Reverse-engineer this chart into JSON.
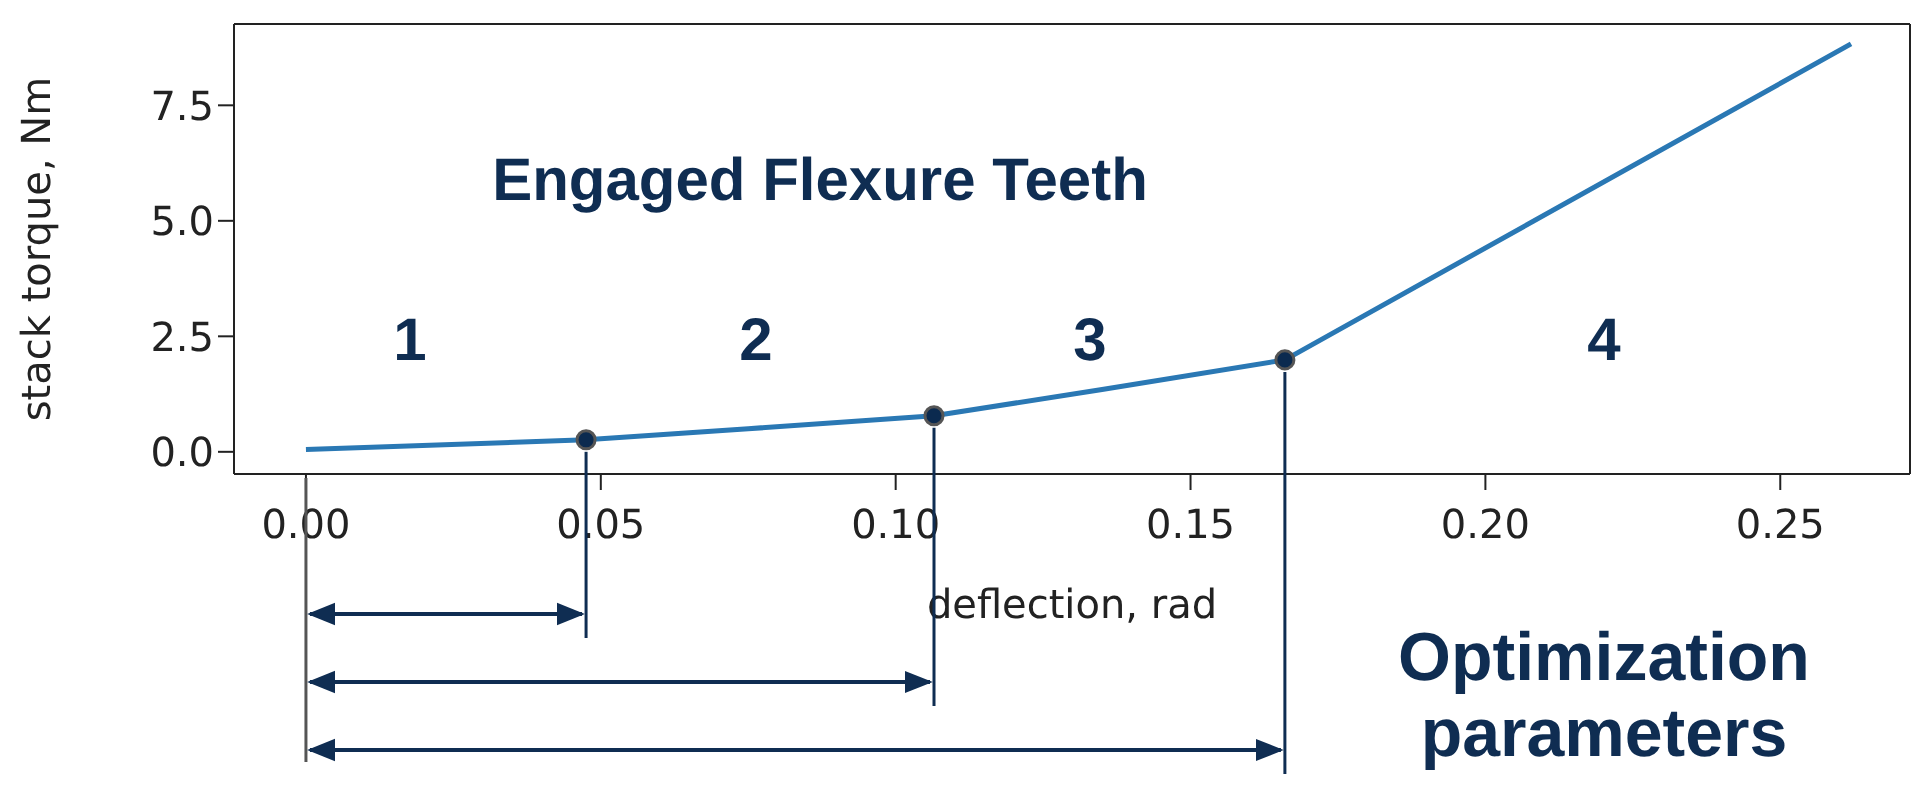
{
  "chart_data": {
    "type": "line",
    "xlabel": "deflection, rad",
    "ylabel": "stack torque, Nm",
    "xlim": [
      -0.0122,
      0.272
    ],
    "ylim": [
      -0.48,
      9.26
    ],
    "xticks": [
      {
        "value": 0,
        "label": "0.00"
      },
      0.05,
      {
        "value": 0.1,
        "label": "0.10"
      },
      0.15,
      {
        "value": 0.2,
        "label": "0.20"
      },
      0.25
    ],
    "yticks": [
      {
        "value": 0,
        "label": "0.0"
      },
      2.5,
      {
        "value": 5,
        "label": "5.0"
      },
      7.5
    ],
    "series": [
      {
        "type": "line",
        "color": "#2a78b4",
        "x": [
          0,
          0.0475,
          0.075,
          0.1065,
          0.135,
          0.166,
          0.262
        ],
        "values": [
          0.05,
          0.26,
          0.5,
          0.78,
          1.35,
          1.99,
          8.83
        ]
      },
      {
        "type": "scatter",
        "color": "#0b2a4f",
        "marker": "circle",
        "x": [
          0.0475,
          0.1065,
          0.166
        ],
        "values": [
          0.26,
          0.78,
          1.99
        ]
      }
    ],
    "ref_lines": [
      {
        "axis": "x",
        "value": 0.1065,
        "color": "#0f2d52"
      },
      {
        "axis": "x",
        "value": 0.166,
        "color": "#0f2d52"
      }
    ],
    "annotations": [
      "Engaged Flexure Teeth",
      "1",
      "2",
      "3",
      "4",
      "Optimization parameters"
    ]
  }
}
